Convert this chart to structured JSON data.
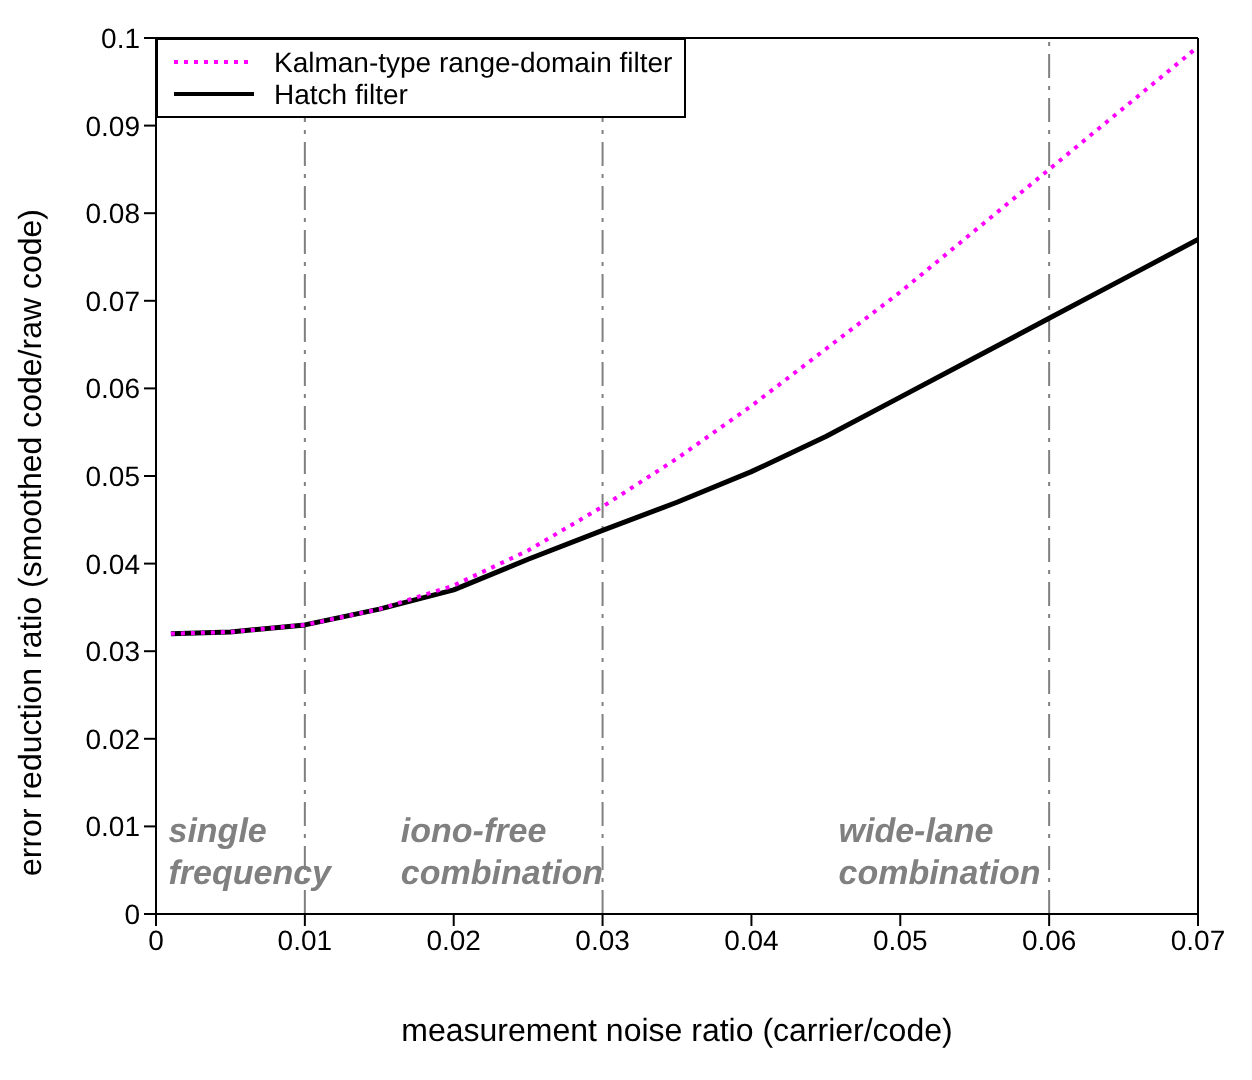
{
  "chart_data": {
    "type": "line",
    "xlabel": "measurement noise ratio (carrier/code)",
    "ylabel": "error reduction ratio (smoothed code/raw code)",
    "x": [
      0.001,
      0.005,
      0.01,
      0.015,
      0.02,
      0.025,
      0.03,
      0.035,
      0.04,
      0.045,
      0.05,
      0.055,
      0.06,
      0.065,
      0.07
    ],
    "series": [
      {
        "name": "Kalman-type range-domain filter",
        "color": "#ff00ff",
        "line_style": "dotted",
        "values": [
          0.032,
          0.0322,
          0.033,
          0.0348,
          0.0375,
          0.0415,
          0.0465,
          0.052,
          0.058,
          0.0645,
          0.071,
          0.078,
          0.085,
          0.092,
          0.099
        ]
      },
      {
        "name": "Hatch filter",
        "color": "#000000",
        "line_style": "solid",
        "values": [
          0.032,
          0.0322,
          0.033,
          0.0348,
          0.037,
          0.0405,
          0.0438,
          0.047,
          0.0505,
          0.0545,
          0.059,
          0.0635,
          0.068,
          0.0725,
          0.077
        ]
      }
    ],
    "xlim": [
      0,
      0.07
    ],
    "xticks": [
      0,
      0.01,
      0.02,
      0.03,
      0.04,
      0.05,
      0.06,
      0.07
    ],
    "ylim": [
      0,
      0.1
    ],
    "yticks": [
      0,
      0.01,
      0.02,
      0.03,
      0.04,
      0.05,
      0.06,
      0.07,
      0.08,
      0.09,
      0.1
    ],
    "ref_lines": [
      {
        "axis": "x",
        "value": 0.01,
        "color": "#808080",
        "line_style": "dashdot"
      },
      {
        "axis": "x",
        "value": 0.03,
        "color": "#808080",
        "line_style": "dashdot"
      },
      {
        "axis": "x",
        "value": 0.06,
        "color": "#808080",
        "line_style": "dashdot"
      }
    ],
    "annotations": [
      "single frequency",
      "iono-free combination",
      "wide-lane combination"
    ],
    "grid": false,
    "legend": "top left",
    "marker": "none"
  }
}
